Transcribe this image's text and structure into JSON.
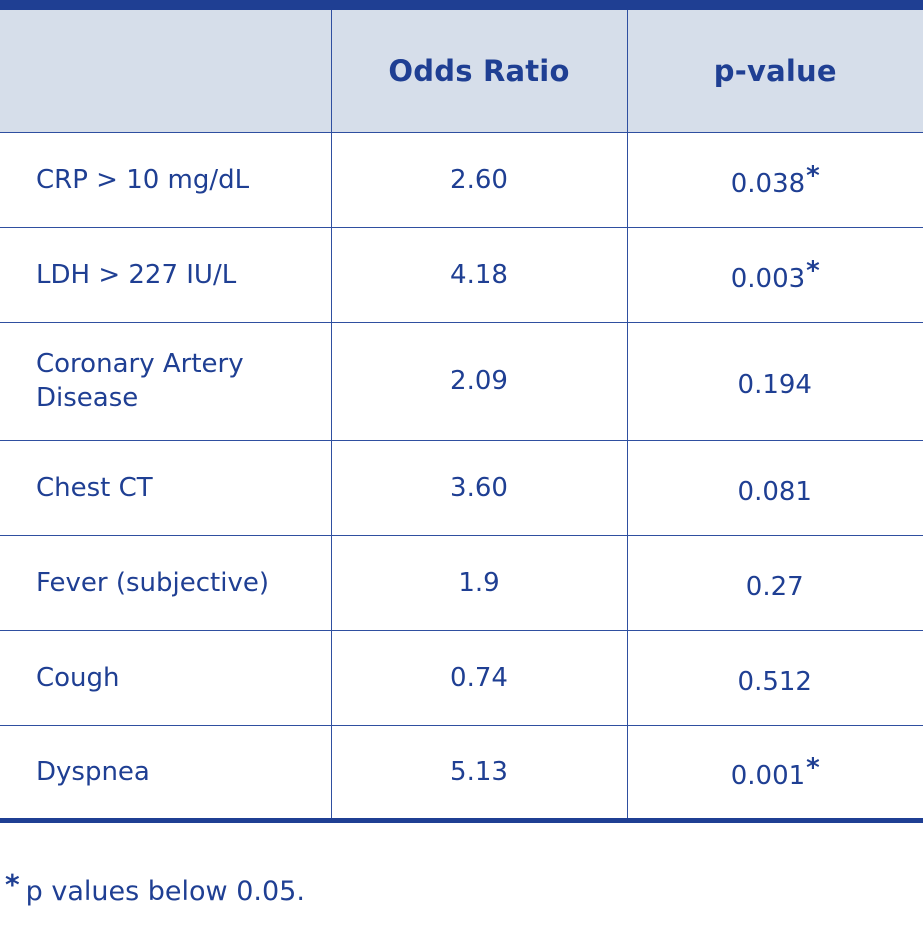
{
  "table": {
    "headers": [
      "",
      "Odds Ratio",
      "p-value"
    ],
    "rows": [
      {
        "label": "CRP > 10 mg/dL",
        "odds_ratio": "2.60",
        "p_value": "0.038",
        "star": "*"
      },
      {
        "label": "LDH > 227 IU/L",
        "odds_ratio": "4.18",
        "p_value": "0.003",
        "star": "*"
      },
      {
        "label": "Coronary Artery Disease",
        "odds_ratio": "2.09",
        "p_value": "0.194",
        "star": ""
      },
      {
        "label": "Chest CT",
        "odds_ratio": "3.60",
        "p_value": "0.081",
        "star": ""
      },
      {
        "label": "Fever (subjective)",
        "odds_ratio": "1.9",
        "p_value": "0.27",
        "star": ""
      },
      {
        "label": "Cough",
        "odds_ratio": "0.74",
        "p_value": "0.512",
        "star": ""
      },
      {
        "label": "Dyspnea",
        "odds_ratio": "5.13",
        "p_value": "0.001",
        "star": "*"
      }
    ]
  },
  "footnote": {
    "star": "*",
    "text": "p values below 0.05."
  },
  "colors": {
    "text": "#1f3f93",
    "header_bg": "#d6deea",
    "rule": "#1f3f93"
  }
}
